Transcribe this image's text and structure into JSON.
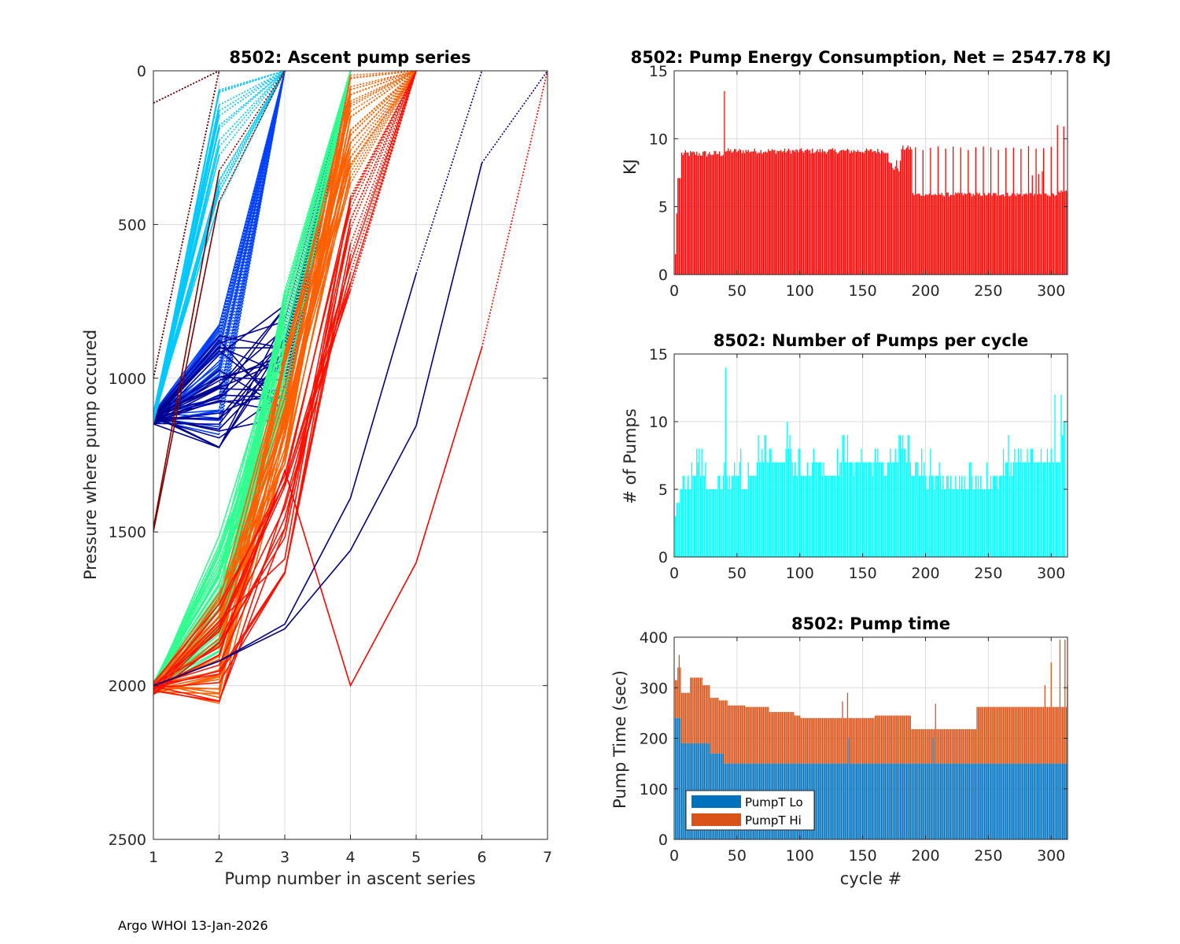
{
  "footer": "Argo WHOI 13-Jan-2026",
  "chart_data": [
    {
      "id": "ascent",
      "type": "line",
      "title": "8502: Ascent pump series",
      "xlabel": "Pump number in ascent series",
      "ylabel": "Pressure where pump occured",
      "xlim": [
        1,
        7
      ],
      "ylim": [
        0,
        2500
      ],
      "y_reversed": true,
      "grid": true,
      "xticks": [
        "1",
        "2",
        "3",
        "4",
        "5",
        "6",
        "7"
      ],
      "yticks": [
        "0",
        "500",
        "1000",
        "1500",
        "2000",
        "2500"
      ],
      "colormap": "jet (by cycle)",
      "series_groups": [
        {
          "name": "early deep starts (blue)",
          "color": "#0040ff",
          "count": 40,
          "start": [
            1,
            1130
          ],
          "points": [
            [
              1,
              1130
            ],
            [
              2,
              1000
            ],
            [
              3,
              0
            ]
          ]
        },
        {
          "name": "dark blue from 1000",
          "color": "#00008f",
          "count": 30,
          "start": [
            1,
            1130
          ],
          "points": [
            [
              1,
              1130
            ],
            [
              2,
              1050
            ],
            [
              3,
              950
            ],
            [
              4,
              0
            ]
          ]
        },
        {
          "name": "cyan shallow",
          "color": "#00c8ff",
          "count": 20,
          "start": [
            1,
            1130
          ],
          "points": [
            [
              1,
              1130
            ],
            [
              2,
              250
            ],
            [
              3,
              0
            ]
          ]
        },
        {
          "name": "green 2000 starts",
          "color": "#30ff90",
          "count": 40,
          "start": [
            1,
            2000
          ],
          "points": [
            [
              1,
              2000
            ],
            [
              2,
              1700
            ],
            [
              3,
              900
            ],
            [
              4,
              0
            ]
          ]
        },
        {
          "name": "orange 2000 starts",
          "color": "#ff6000",
          "count": 30,
          "start": [
            1,
            2010
          ],
          "points": [
            [
              1,
              2010
            ],
            [
              2,
              1880
            ],
            [
              3,
              1100
            ],
            [
              4,
              200
            ],
            [
              5,
              0
            ]
          ]
        },
        {
          "name": "red late",
          "color": "#ff1000",
          "count": 15,
          "start": [
            1,
            2010
          ],
          "points": [
            [
              1,
              2010
            ],
            [
              2,
              1900
            ],
            [
              3,
              1500
            ],
            [
              4,
              600
            ],
            [
              5,
              0
            ]
          ]
        },
        {
          "name": "red outlier",
          "color": "#ff0000",
          "count": 1,
          "points": [
            [
              1,
              2010
            ],
            [
              2,
              1900
            ],
            [
              3,
              1300
            ],
            [
              4,
              2000
            ],
            [
              5,
              1600
            ],
            [
              6,
              900
            ],
            [
              7,
              0
            ]
          ]
        },
        {
          "name": "navy long series A",
          "color": "#000080",
          "count": 1,
          "points": [
            [
              1,
              2000
            ],
            [
              2,
              1920
            ],
            [
              3,
              1800
            ],
            [
              4,
              1390
            ],
            [
              5,
              660
            ],
            [
              6,
              0
            ]
          ]
        },
        {
          "name": "navy long series B",
          "color": "#000080",
          "count": 1,
          "points": [
            [
              1,
              2000
            ],
            [
              2,
              1920
            ],
            [
              3,
              1815
            ],
            [
              4,
              1560
            ],
            [
              5,
              1155
            ],
            [
              6,
              300
            ],
            [
              7,
              0
            ]
          ]
        },
        {
          "name": "dark red first cycles",
          "color": "#800000",
          "count": 2,
          "points": [
            [
              1,
              1500
            ],
            [
              2,
              500
            ],
            [
              3,
              0
            ]
          ]
        },
        {
          "name": "dark red dotted",
          "color": "#600000",
          "count": 1,
          "points": [
            [
              1,
              105
            ],
            [
              2,
              0
            ]
          ]
        },
        {
          "name": "dark red dotted 2",
          "color": "#600000",
          "count": 1,
          "points": [
            [
              1,
              1000
            ],
            [
              2,
              0
            ]
          ]
        }
      ]
    },
    {
      "id": "energy",
      "type": "bar",
      "title": "8502: Pump Energy Consumption,  Net = 2547.78 KJ",
      "xlabel": "",
      "ylabel": "KJ",
      "xlim": [
        0,
        313
      ],
      "ylim": [
        0,
        15
      ],
      "grid": true,
      "color": "#ff0000",
      "xticks": [
        "0",
        "50",
        "100",
        "150",
        "200",
        "250",
        "300"
      ],
      "yticks": [
        "0",
        "5",
        "10",
        "15"
      ],
      "segments": [
        {
          "from": 1,
          "to": 1,
          "value": 1.5
        },
        {
          "from": 2,
          "to": 2,
          "value": 4.5
        },
        {
          "from": 3,
          "to": 5,
          "value": 7.1
        },
        {
          "from": 6,
          "to": 39,
          "value": 8.9,
          "jitter": 0.25
        },
        {
          "from": 40,
          "to": 40,
          "value": 13.5
        },
        {
          "from": 41,
          "to": 170,
          "value": 9.1,
          "jitter": 0.2
        },
        {
          "from": 171,
          "to": 180,
          "value": 8.0,
          "jitter": 0.5
        },
        {
          "from": 181,
          "to": 189,
          "value": 9.3,
          "jitter": 0.2
        },
        {
          "from": 190,
          "to": 300,
          "value": 5.9,
          "jitter": 0.15,
          "spikes_every": 6,
          "spike_value": 9.3
        },
        {
          "from": 301,
          "to": 313,
          "value": 6.0,
          "jitter": 0.2
        }
      ],
      "outliers": [
        {
          "cycle": 305,
          "value": 11.0
        },
        {
          "cycle": 310,
          "value": 10.9
        },
        {
          "cycle": 285,
          "value": 7.3
        },
        {
          "cycle": 290,
          "value": 7.4
        },
        {
          "cycle": 293,
          "value": 7.6
        }
      ]
    },
    {
      "id": "pumps",
      "type": "bar",
      "title": "8502: Number of Pumps per cycle",
      "xlabel": "",
      "ylabel": "# of Pumps",
      "xlim": [
        0,
        313
      ],
      "ylim": [
        0,
        15
      ],
      "grid": true,
      "color": "#00ffff",
      "xticks": [
        "0",
        "50",
        "100",
        "150",
        "200",
        "250",
        "300"
      ],
      "yticks": [
        "0",
        "5",
        "10",
        "15"
      ],
      "values": [
        3,
        4,
        4,
        4,
        5,
        5,
        6,
        6,
        5,
        5,
        6,
        5,
        5,
        7,
        6,
        6,
        6,
        8,
        7,
        8,
        6,
        8,
        6,
        6,
        7,
        5,
        5,
        5,
        5,
        5,
        5,
        5,
        5,
        5,
        6,
        6,
        5,
        5,
        6,
        7,
        14,
        6,
        5,
        6,
        5,
        6,
        6,
        7,
        6,
        6,
        6,
        7,
        8,
        5,
        5,
        5,
        5,
        5,
        7,
        6,
        6,
        6,
        6,
        6,
        6,
        7,
        9,
        7,
        7,
        8,
        7,
        9,
        9,
        7,
        7,
        8,
        8,
        7,
        7,
        7,
        7,
        7,
        7,
        7,
        7,
        7,
        7,
        7,
        8,
        10,
        8,
        9,
        8,
        7,
        6,
        7,
        6,
        6,
        8,
        8,
        6,
        6,
        6,
        6,
        6,
        7,
        6,
        6,
        6,
        7,
        8,
        7,
        7,
        7,
        7,
        7,
        7,
        6,
        7,
        6,
        6,
        6,
        6,
        6,
        6,
        6,
        6,
        6,
        6,
        8,
        6,
        7,
        7,
        9,
        9,
        7,
        7,
        9,
        7,
        7,
        7,
        7,
        6,
        7,
        7,
        7,
        7,
        7,
        8,
        7,
        7,
        7,
        7,
        7,
        7,
        7,
        7,
        6,
        7,
        8,
        7,
        8,
        7,
        7,
        7,
        7,
        6,
        6,
        6,
        7,
        7,
        8,
        7,
        7,
        7,
        8,
        7,
        7,
        9,
        9,
        8,
        9,
        8,
        8,
        7,
        9,
        9,
        7,
        6,
        6,
        6,
        7,
        7,
        7,
        6,
        6,
        8,
        6,
        7,
        6,
        5,
        5,
        6,
        8,
        6,
        6,
        5,
        6,
        6,
        6,
        7,
        6,
        5,
        6,
        5,
        5,
        6,
        6,
        5,
        6,
        5,
        5,
        5,
        6,
        5,
        5,
        6,
        5,
        6,
        5,
        6,
        5,
        5,
        5,
        7,
        7,
        6,
        5,
        5,
        6,
        5,
        6,
        5,
        6,
        5,
        5,
        5,
        5,
        7,
        5,
        5,
        6,
        5,
        6,
        6,
        6,
        6,
        5,
        6,
        6,
        6,
        8,
        6,
        7,
        7,
        9,
        6,
        7,
        6,
        7,
        8,
        7,
        7,
        8,
        7,
        8,
        7,
        7,
        7,
        7,
        8,
        7,
        7,
        8,
        8,
        7,
        7,
        7,
        7,
        7,
        7,
        8,
        7,
        7,
        7,
        7,
        8,
        7,
        7,
        8,
        7,
        7,
        12,
        7,
        7,
        7,
        7,
        12,
        9,
        10,
        10
      ]
    },
    {
      "id": "pumptime",
      "type": "bar",
      "stacked": true,
      "title": "8502: Pump time",
      "xlabel": "cycle #",
      "ylabel": "Pump Time (sec)",
      "xlim": [
        0,
        313
      ],
      "ylim": [
        0,
        400
      ],
      "grid": true,
      "xticks": [
        "0",
        "50",
        "100",
        "150",
        "200",
        "250",
        "300"
      ],
      "yticks": [
        "0",
        "100",
        "200",
        "300",
        "400"
      ],
      "legend": {
        "placement": "bottom-left",
        "entries": [
          {
            "name": "PumpT Lo",
            "color": "#0072bd"
          },
          {
            "name": "PumpT Hi",
            "color": "#d95319"
          }
        ]
      },
      "series": [
        {
          "name": "PumpT Lo",
          "color": "#0072bd",
          "segments": [
            {
              "from": 1,
              "to": 5,
              "value": 240
            },
            {
              "from": 6,
              "to": 28,
              "value": 190
            },
            {
              "from": 29,
              "to": 39,
              "value": 170
            },
            {
              "from": 40,
              "to": 313,
              "value": 150
            }
          ],
          "outliers": [
            {
              "cycle": 139,
              "value": 200
            },
            {
              "cycle": 206,
              "value": 200
            }
          ]
        },
        {
          "name": "PumpT Hi (total height)",
          "color": "#d95319",
          "segments": [
            {
              "from": 1,
              "to": 2,
              "value": 315
            },
            {
              "from": 3,
              "to": 5,
              "value": 340
            },
            {
              "from": 6,
              "to": 12,
              "value": 290
            },
            {
              "from": 13,
              "to": 22,
              "value": 320
            },
            {
              "from": 23,
              "to": 28,
              "value": 305
            },
            {
              "from": 29,
              "to": 35,
              "value": 280
            },
            {
              "from": 36,
              "to": 42,
              "value": 275
            },
            {
              "from": 43,
              "to": 56,
              "value": 265
            },
            {
              "from": 57,
              "to": 75,
              "value": 262
            },
            {
              "from": 76,
              "to": 95,
              "value": 252
            },
            {
              "from": 96,
              "to": 100,
              "value": 245
            },
            {
              "from": 101,
              "to": 188,
              "value": 240
            },
            {
              "from": 160,
              "to": 188,
              "value": 245
            },
            {
              "from": 189,
              "to": 240,
              "value": 218
            },
            {
              "from": 241,
              "to": 313,
              "value": 262
            }
          ],
          "outliers": [
            {
              "cycle": 4,
              "value": 365
            },
            {
              "cycle": 134,
              "value": 273
            },
            {
              "cycle": 138,
              "value": 290
            },
            {
              "cycle": 208,
              "value": 268
            },
            {
              "cycle": 295,
              "value": 305
            },
            {
              "cycle": 300,
              "value": 350
            },
            {
              "cycle": 307,
              "value": 395
            },
            {
              "cycle": 311,
              "value": 395
            },
            {
              "cycle": 313,
              "value": 305
            }
          ]
        }
      ]
    }
  ]
}
